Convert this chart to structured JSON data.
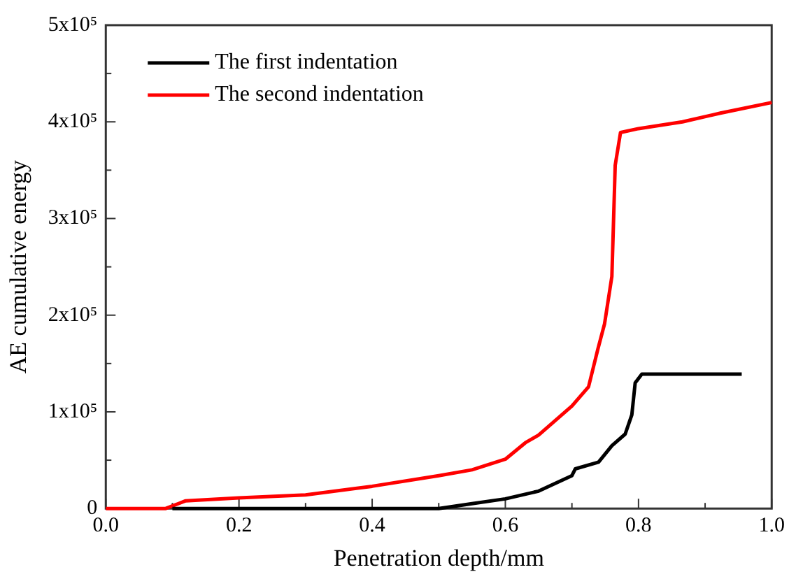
{
  "chart_data": {
    "type": "line",
    "xlabel": "Penetration depth/mm",
    "ylabel": "AE cumulative energy",
    "xlim": [
      0,
      1
    ],
    "ylim": [
      0,
      500000
    ],
    "xticks": [
      {
        "value": 0,
        "label": "0.0"
      },
      {
        "value": 0.1,
        "label": null
      },
      {
        "value": 0.2,
        "label": "0.2"
      },
      {
        "value": 0.3,
        "label": null
      },
      {
        "value": 0.4,
        "label": "0.4"
      },
      {
        "value": 0.5,
        "label": null
      },
      {
        "value": 0.6,
        "label": "0.6"
      },
      {
        "value": 0.7,
        "label": null
      },
      {
        "value": 0.8,
        "label": "0.8"
      },
      {
        "value": 0.9,
        "label": null
      },
      {
        "value": 1,
        "label": "1.0"
      }
    ],
    "yticks": [
      {
        "value": 0,
        "label": "0"
      },
      {
        "value": 50000,
        "label": null
      },
      {
        "value": 100000,
        "label": "1x10⁵"
      },
      {
        "value": 150000,
        "label": null
      },
      {
        "value": 200000,
        "label": "2x10⁵"
      },
      {
        "value": 250000,
        "label": null
      },
      {
        "value": 300000,
        "label": "3x10⁵"
      },
      {
        "value": 350000,
        "label": null
      },
      {
        "value": 400000,
        "label": "4x10⁵"
      },
      {
        "value": 450000,
        "label": null
      },
      {
        "value": 500000,
        "label": "5x10⁵"
      }
    ],
    "grid": false,
    "legend": "top left",
    "marker": "none",
    "line_style": "solid",
    "series": [
      {
        "name": "The first indentation",
        "color": "#000000",
        "x": [
          0.1,
          0.5,
          0.55,
          0.6,
          0.65,
          0.7,
          0.705,
          0.74,
          0.76,
          0.78,
          0.79,
          0.795,
          0.805,
          0.955
        ],
        "values": [
          0,
          0,
          5000,
          10000,
          18000,
          34000,
          41000,
          48000,
          65000,
          77000,
          97000,
          130000,
          139000,
          139000
        ]
      },
      {
        "name": "The second indentation",
        "color": "#ff0000",
        "x": [
          0,
          0.09,
          0.12,
          0.2,
          0.3,
          0.4,
          0.5,
          0.55,
          0.6,
          0.63,
          0.65,
          0.7,
          0.725,
          0.739,
          0.749,
          0.76,
          0.765,
          0.773,
          0.8,
          0.866,
          0.923,
          1.0
        ],
        "values": [
          0,
          0,
          8000,
          11000,
          14000,
          23000,
          34000,
          40000,
          51000,
          68000,
          76000,
          106000,
          126000,
          165000,
          191000,
          240000,
          355000,
          389000,
          393000,
          400000,
          409000,
          420000
        ]
      }
    ]
  }
}
